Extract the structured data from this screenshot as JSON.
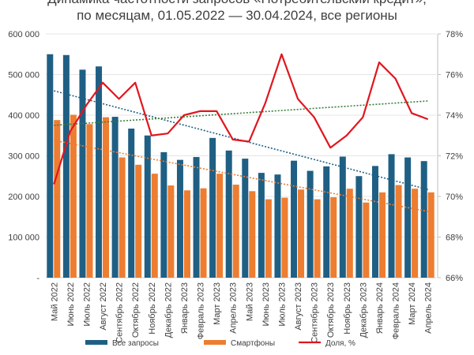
{
  "chart_data": {
    "type": "bar",
    "title_lines": [
      "Динамика частотности запросов «Потребительский кредит»,",
      "по месяцам, 01.05.2022 — 30.04.2024, все регионы"
    ],
    "categories": [
      "Май 2022",
      "Июнь 2022",
      "Июль 2022",
      "Август 2022",
      "Сентябрь 2022",
      "Октябрь 2022",
      "Ноябрь 2022",
      "Декабрь 2022",
      "Январь 2023",
      "Февраль 2023",
      "Март 2023",
      "Апрель 2023",
      "Май 2023",
      "Июнь 2023",
      "Июль 2023",
      "Август 2023",
      "Сентябрь 2023",
      "Октябрь 2023",
      "Ноябрь 2023",
      "Декабрь 2023",
      "Январь 2024",
      "Февраль 2024",
      "Март 2024",
      "Апрель 2024"
    ],
    "series": [
      {
        "name": "Все запросы",
        "type": "bar",
        "axis": "left",
        "color": "#1f5f84",
        "values": [
          550000,
          548000,
          512000,
          520000,
          396000,
          367000,
          350000,
          309000,
          290000,
          297000,
          344000,
          313000,
          293000,
          258000,
          254000,
          288000,
          263000,
          274000,
          298000,
          250000,
          275000,
          304000,
          296000,
          287000
        ],
        "trend": {
          "color": "#1f5f84",
          "start": 460000,
          "end": 217000
        }
      },
      {
        "name": "Смартфоны",
        "type": "bar",
        "axis": "left",
        "color": "#ed7d31",
        "values": [
          388000,
          401000,
          378000,
          395000,
          296000,
          278000,
          256000,
          227000,
          215000,
          220000,
          256000,
          229000,
          213000,
          193000,
          197000,
          217000,
          193000,
          198000,
          219000,
          185000,
          210000,
          228000,
          219000,
          210000
        ],
        "trend": {
          "color": "#ed7d31",
          "start": 338000,
          "end": 163000
        }
      },
      {
        "name": "Доля, %",
        "type": "line",
        "axis": "right",
        "color": "#e0161e",
        "values": [
          70.6,
          73.2,
          74.5,
          75.6,
          74.8,
          75.6,
          73.0,
          73.1,
          74.0,
          74.2,
          74.2,
          72.8,
          72.7,
          74.6,
          77.0,
          74.8,
          73.9,
          72.4,
          73.0,
          73.9,
          76.6,
          75.8,
          74.1,
          73.8
        ],
        "trend": {
          "color": "#3a7d3a",
          "start": 73.5,
          "end": 74.7
        }
      }
    ],
    "y_left": {
      "ylim": [
        0,
        600000
      ],
      "ticks": [
        "-",
        "100 000",
        "200 000",
        "300 000",
        "400 000",
        "500 000",
        "600 000"
      ]
    },
    "y_right": {
      "ylim": [
        66,
        78
      ],
      "ticks": [
        "66%",
        "68%",
        "70%",
        "72%",
        "74%",
        "76%",
        "78%"
      ]
    },
    "grid": true,
    "legend_position": "bottom"
  }
}
